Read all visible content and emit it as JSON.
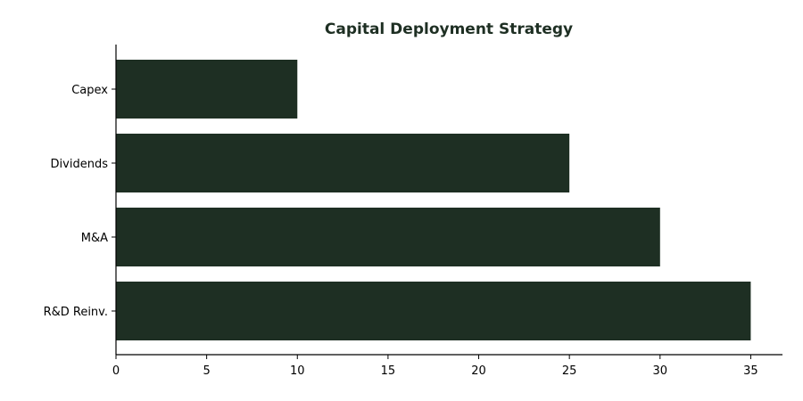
{
  "chart_data": {
    "type": "bar",
    "orientation": "horizontal",
    "title": "Capital Deployment Strategy",
    "xlabel": "",
    "ylabel": "",
    "categories": [
      "Capex",
      "Dividends",
      "M&A",
      "R&D Reinv."
    ],
    "values": [
      10,
      25,
      30,
      35
    ],
    "xlim": [
      0,
      36.75
    ],
    "xticks": [
      0,
      5,
      10,
      15,
      20,
      25,
      30,
      35
    ],
    "grid": false,
    "legend": "none",
    "colors": {
      "bar": "#1e2f23",
      "title": "#1e2f23",
      "axis": "#000000"
    }
  }
}
